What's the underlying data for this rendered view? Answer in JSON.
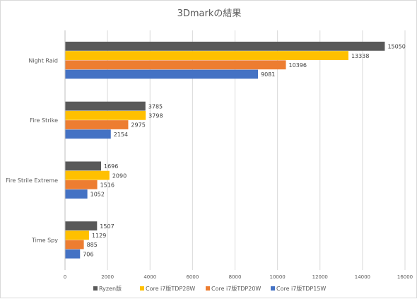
{
  "chart_data": {
    "type": "bar",
    "orientation": "horizontal",
    "title": "3Dmarkの結果",
    "categories": [
      "Night Raid",
      "Fire Strike",
      "Fire Strile Extreme",
      "Time Spy"
    ],
    "series": [
      {
        "name": "Ryzen版",
        "color": "#595959",
        "values": [
          15050,
          3785,
          1696,
          1507
        ]
      },
      {
        "name": "Core i7版TDP28W",
        "color": "#ffc000",
        "values": [
          13338,
          3798,
          2090,
          1129
        ]
      },
      {
        "name": "Core i7版TDP20W",
        "color": "#ed7d31",
        "values": [
          10396,
          2975,
          1516,
          885
        ]
      },
      {
        "name": "Core i7版TDP15W",
        "color": "#4472c4",
        "values": [
          9081,
          2154,
          1052,
          706
        ]
      }
    ],
    "xlim": [
      0,
      16000
    ],
    "xticks": [
      0,
      2000,
      4000,
      6000,
      8000,
      10000,
      12000,
      14000,
      16000
    ],
    "grid": true,
    "legend_position": "bottom",
    "data_labels": true
  }
}
